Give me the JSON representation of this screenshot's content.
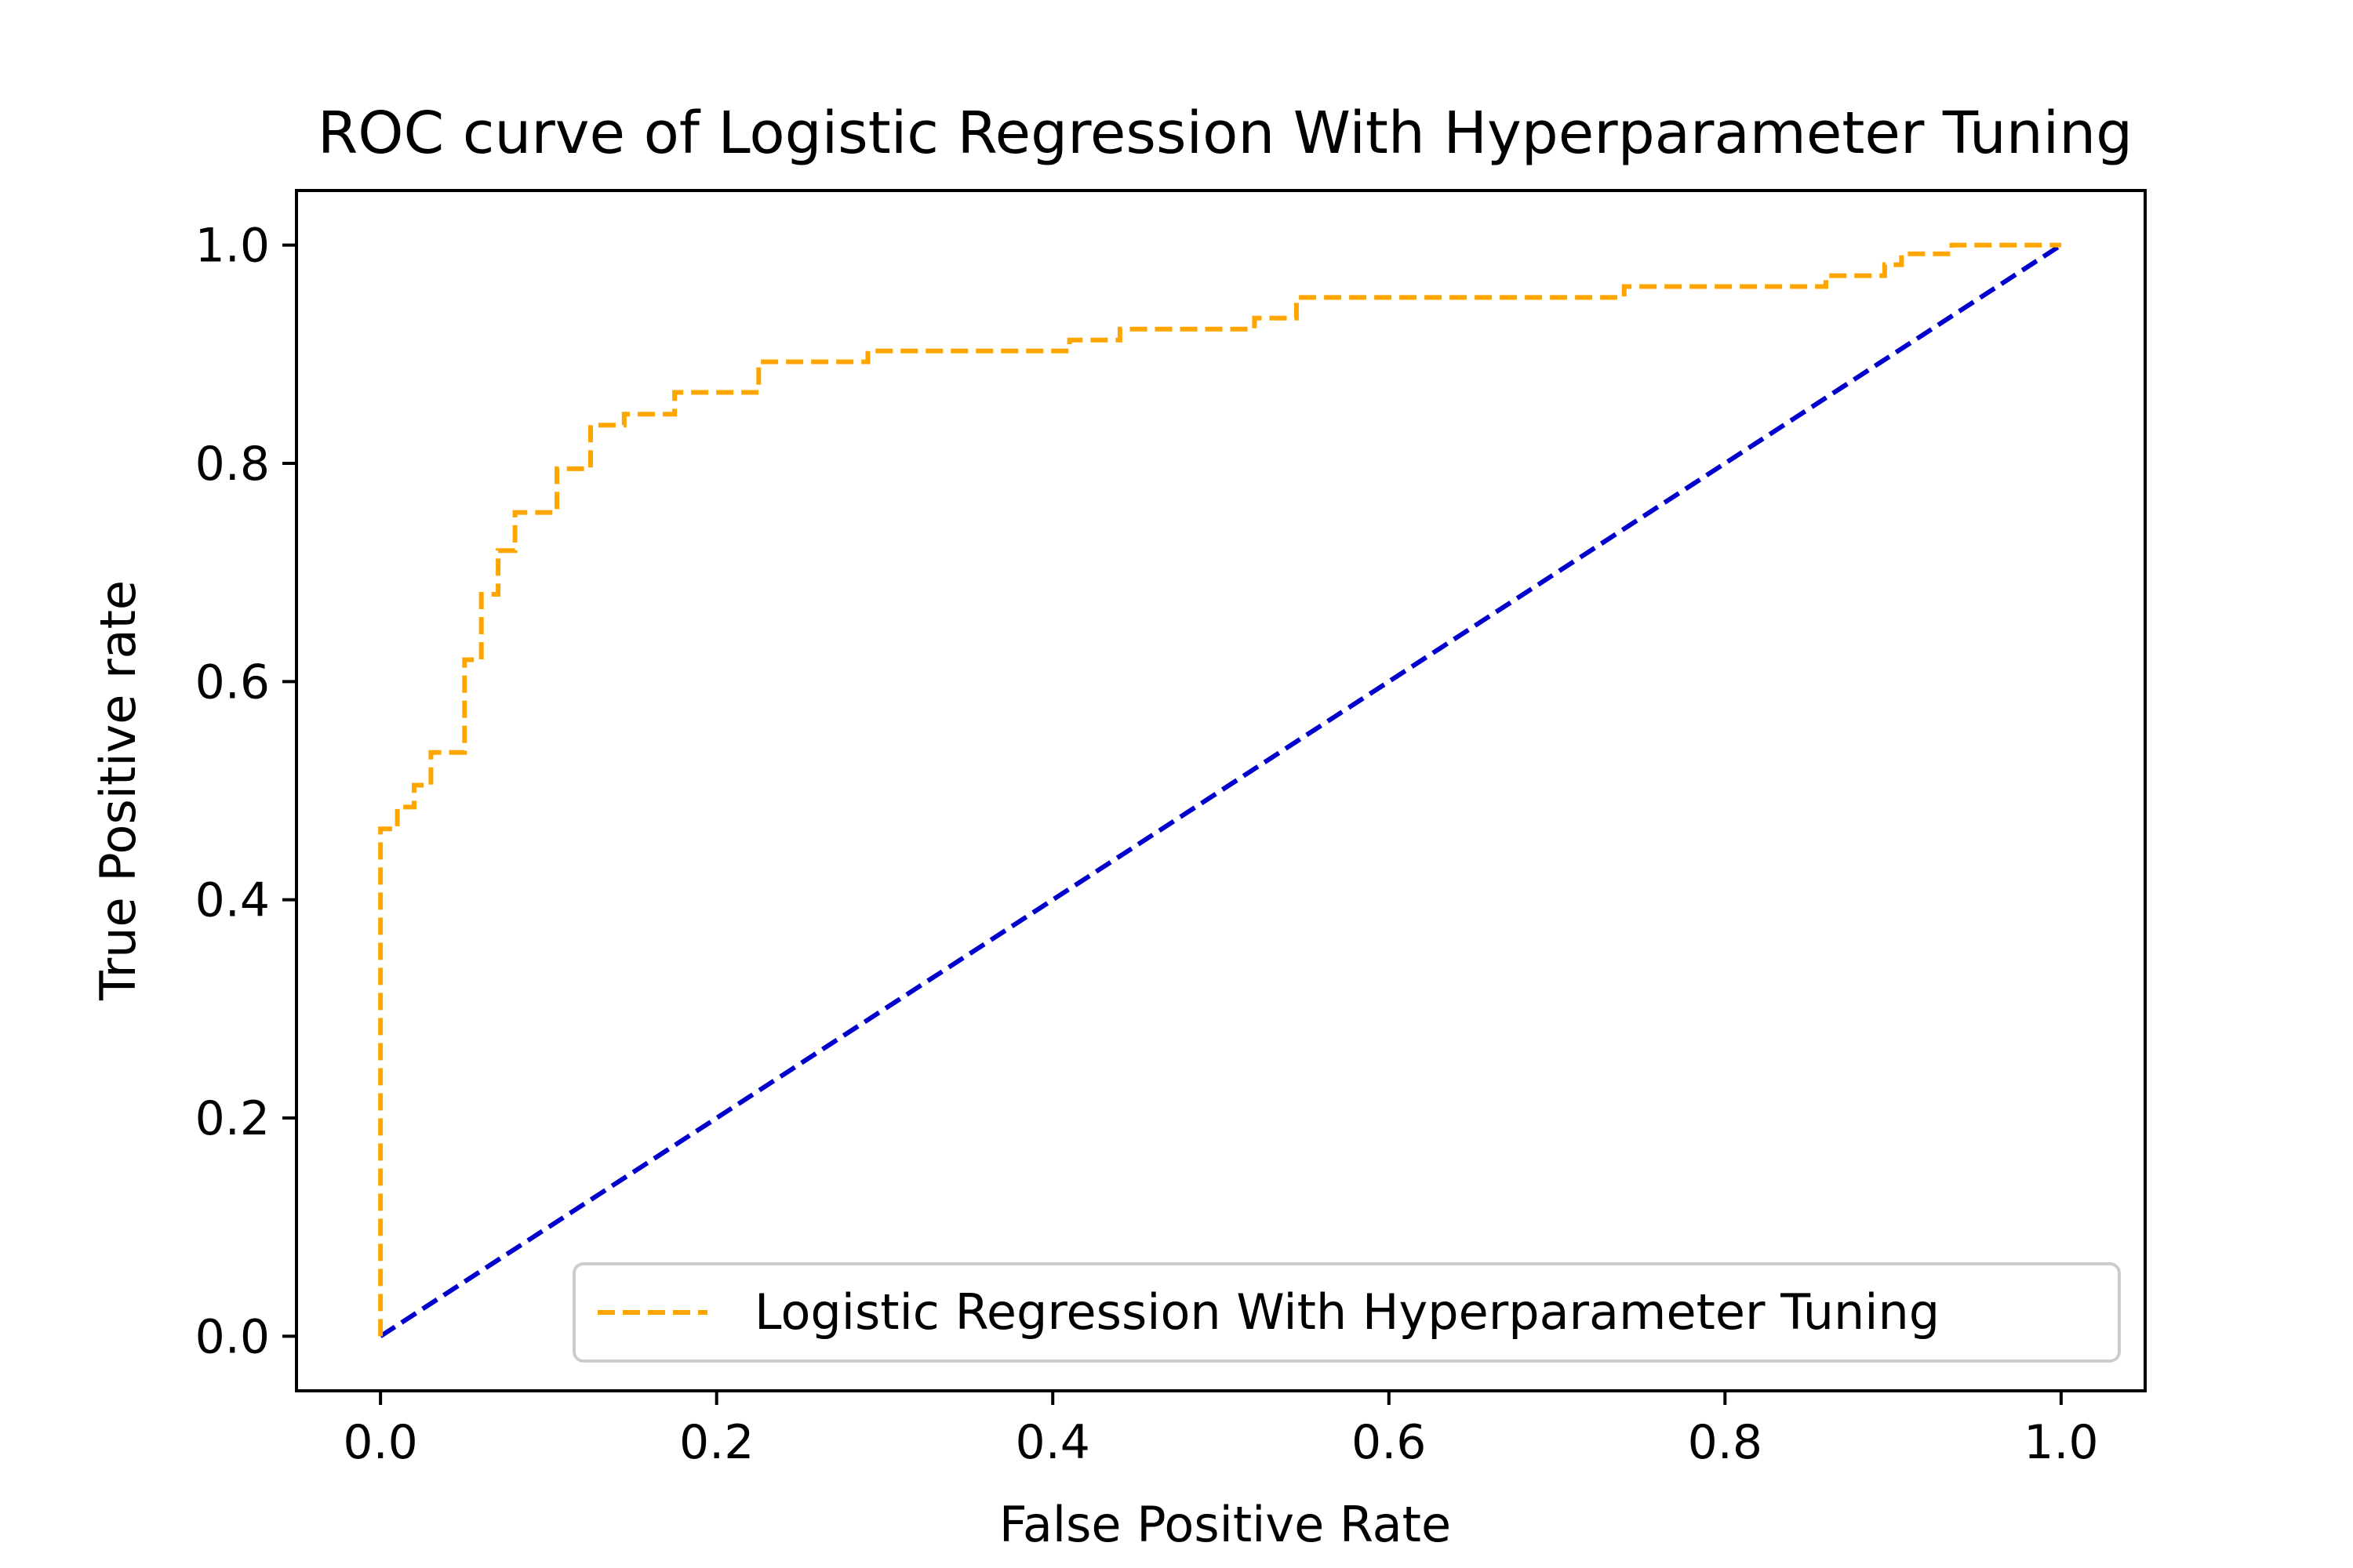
{
  "chart_data": {
    "type": "line",
    "title": "ROC curve of Logistic Regression With Hyperparameter Tuning",
    "xlabel": "False Positive Rate",
    "ylabel": "True Positive rate",
    "xlim": [
      -0.05,
      1.05
    ],
    "ylim": [
      -0.05,
      1.05
    ],
    "xticks": [
      0.0,
      0.2,
      0.4,
      0.6,
      0.8,
      1.0
    ],
    "xtick_labels": [
      "0.0",
      "0.2",
      "0.4",
      "0.6",
      "0.8",
      "1.0"
    ],
    "yticks": [
      0.0,
      0.2,
      0.4,
      0.6,
      0.8,
      1.0
    ],
    "ytick_labels": [
      "0.0",
      "0.2",
      "0.4",
      "0.6",
      "0.8",
      "1.0"
    ],
    "grid": false,
    "legend_position": "lower right",
    "series": [
      {
        "name": "Logistic Regression With Hyperparameter Tuning",
        "color": "#FFA500",
        "style": "dashed",
        "x": [
          0.0,
          0.0,
          0.01,
          0.01,
          0.02,
          0.02,
          0.03,
          0.03,
          0.05,
          0.05,
          0.06,
          0.06,
          0.07,
          0.07,
          0.08,
          0.08,
          0.105,
          0.105,
          0.125,
          0.125,
          0.145,
          0.145,
          0.175,
          0.175,
          0.225,
          0.225,
          0.29,
          0.29,
          0.41,
          0.41,
          0.44,
          0.44,
          0.52,
          0.52,
          0.545,
          0.545,
          0.74,
          0.74,
          0.86,
          0.86,
          0.895,
          0.895,
          0.905,
          0.905,
          0.935,
          0.935,
          1.0
        ],
        "y": [
          0.0,
          0.465,
          0.465,
          0.485,
          0.485,
          0.505,
          0.505,
          0.535,
          0.535,
          0.62,
          0.62,
          0.68,
          0.68,
          0.72,
          0.72,
          0.755,
          0.755,
          0.795,
          0.795,
          0.835,
          0.835,
          0.845,
          0.845,
          0.865,
          0.865,
          0.893,
          0.893,
          0.903,
          0.903,
          0.913,
          0.913,
          0.923,
          0.923,
          0.933,
          0.933,
          0.952,
          0.952,
          0.962,
          0.962,
          0.972,
          0.972,
          0.982,
          0.982,
          0.992,
          0.992,
          1.0,
          1.0
        ]
      },
      {
        "name": "",
        "color": "#0000CC",
        "style": "dashed",
        "x": [
          0.0,
          1.0
        ],
        "y": [
          0.0,
          1.0
        ]
      }
    ]
  }
}
